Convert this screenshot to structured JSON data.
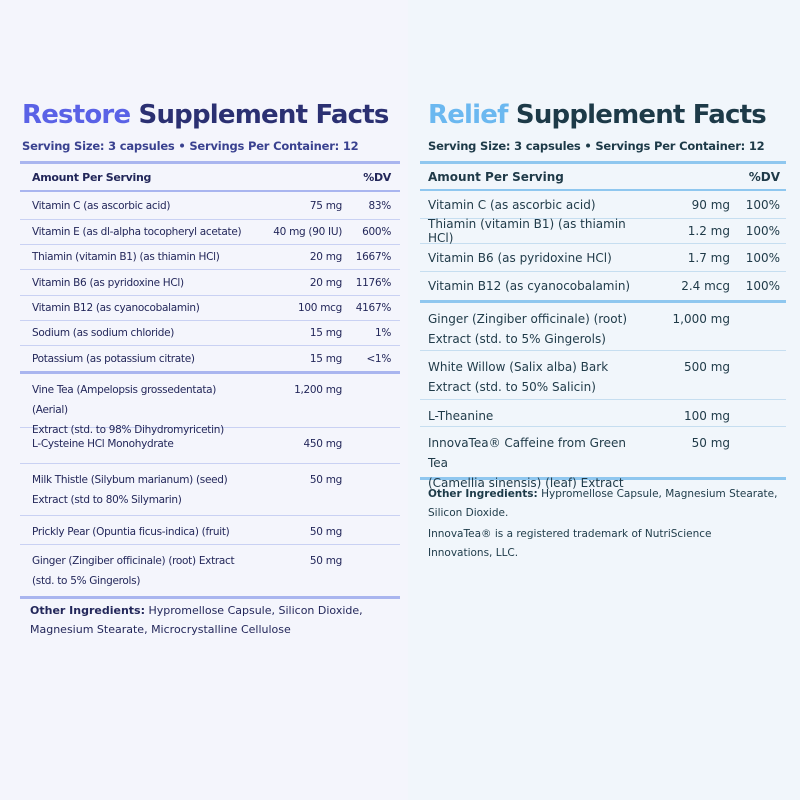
{
  "colors": {
    "restore_accent": "#5a62e6",
    "restore_dark": "#2b3072",
    "relief_accent": "#6bb8f0",
    "relief_dark": "#1d3a48"
  },
  "restore": {
    "title_accent": "Restore",
    "title_rest": "Supplement Facts",
    "serving": "Serving Size: 3 capsules • Servings Per Container: 12",
    "header": {
      "amount": "Amount Per Serving",
      "dv": "%DV"
    },
    "vitamins": [
      {
        "name": "Vitamin C (as ascorbic acid)",
        "amount": "75 mg",
        "dv": "83%"
      },
      {
        "name": "Vitamin E (as dl-alpha tocopheryl acetate)",
        "amount": "40 mg (90 IU)",
        "dv": "600%"
      },
      {
        "name": "Thiamin (vitamin B1) (as thiamin HCl)",
        "amount": "20 mg",
        "dv": "1667%"
      },
      {
        "name": "Vitamin B6 (as pyridoxine HCl)",
        "amount": "20 mg",
        "dv": "1176%"
      },
      {
        "name": "Vitamin B12 (as cyanocobalamin)",
        "amount": "100 mcg",
        "dv": "4167%"
      },
      {
        "name": "Sodium (as sodium chloride)",
        "amount": "15 mg",
        "dv": "1%"
      },
      {
        "name": "Potassium (as potassium citrate)",
        "amount": "15 mg",
        "dv": "<1%"
      }
    ],
    "botanicals": [
      {
        "name1": "Vine Tea (Ampelopsis grossedentata) (Aerial)",
        "name2": "Extract (std. to 98% Dihydromyricetin)",
        "amount": "1,200 mg"
      },
      {
        "name1": "L-Cysteine HCl Monohydrate",
        "name2": "",
        "amount": "450 mg"
      },
      {
        "name1": "Milk Thistle (Silybum marianum) (seed)",
        "name2": "Extract (std to 80% Silymarin)",
        "amount": "50 mg"
      },
      {
        "name1": "Prickly Pear (Opuntia ficus-indica) (fruit)",
        "name2": "",
        "amount": "50 mg"
      },
      {
        "name1": "Ginger (Zingiber officinale) (root) Extract",
        "name2": "(std. to 5% Gingerols)",
        "amount": "50 mg"
      }
    ],
    "other_label": "Other Ingredients:",
    "other_line1": " Hypromellose Capsule, Silicon Dioxide,",
    "other_line2": "Magnesium Stearate, Microcrystalline Cellulose"
  },
  "relief": {
    "title_accent": "Relief",
    "title_rest": "Supplement Facts",
    "serving": "Serving Size: 3 capsules • Servings Per Container: 12",
    "header": {
      "amount": "Amount Per Serving",
      "dv": "%DV"
    },
    "vitamins": [
      {
        "name": "Vitamin C (as ascorbic acid)",
        "amount": "90 mg",
        "dv": "100%"
      },
      {
        "name": "Thiamin (vitamin B1) (as thiamin HCl)",
        "amount": "1.2 mg",
        "dv": "100%"
      },
      {
        "name": "Vitamin B6 (as pyridoxine HCl)",
        "amount": "1.7 mg",
        "dv": "100%"
      },
      {
        "name": "Vitamin B12 (as cyanocobalamin)",
        "amount": "2.4 mcg",
        "dv": "100%"
      }
    ],
    "botanicals": [
      {
        "name1": "Ginger (Zingiber officinale) (root)",
        "name2": "Extract (std. to 5% Gingerols)",
        "amount": "1,000 mg"
      },
      {
        "name1": "White Willow (Salix alba) Bark",
        "name2": "Extract (std. to 50% Salicin)",
        "amount": "500 mg"
      },
      {
        "name1": "L-Theanine",
        "name2": "",
        "amount": "100 mg"
      },
      {
        "name1": "InnovaTea® Caffeine from Green Tea",
        "name2": "(Camellia sinensis) (leaf) Extract",
        "amount": "50 mg"
      }
    ],
    "other_label": "Other Ingredients:",
    "other_line1": " Hypromellose Capsule, Magnesium Stearate,",
    "other_line2": "Silicon Dioxide.",
    "trademark_line1": "InnovaTea® is a registered trademark of NutriScience",
    "trademark_line2": "Innovations, LLC."
  }
}
